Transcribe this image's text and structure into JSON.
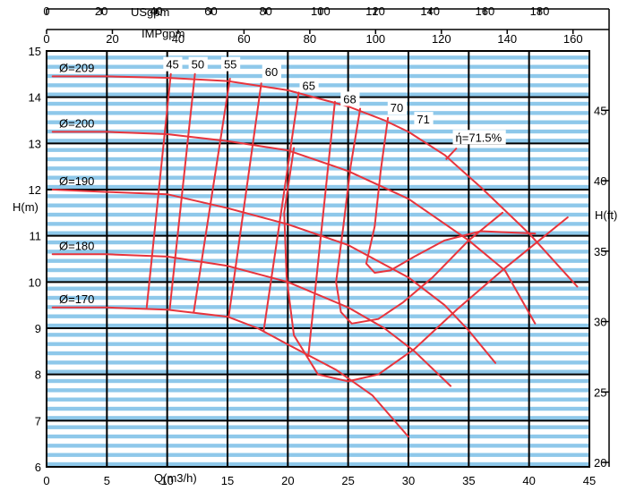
{
  "chart_data": {
    "type": "line",
    "colors": {
      "curve": "#e8343c",
      "band": "#8ec8ea",
      "grid": "#000000"
    },
    "axes": {
      "bottom": {
        "label": "Q(m3/h)",
        "range": [
          0,
          45
        ],
        "ticks": [
          0,
          5,
          10,
          15,
          20,
          25,
          30,
          35,
          40,
          45
        ]
      },
      "left": {
        "label": "H(m)",
        "range": [
          6,
          15
        ],
        "ticks": [
          6,
          7,
          8,
          9,
          10,
          11,
          12,
          13,
          14,
          15
        ]
      },
      "right": {
        "label": "H(ft)",
        "ticks": [
          20,
          25,
          30,
          35,
          40,
          45
        ]
      },
      "top1": {
        "label": "USgpm",
        "ticks": [
          0,
          20,
          40,
          60,
          80,
          100,
          120,
          140,
          160,
          180
        ]
      },
      "top2": {
        "label": "IMPgpm",
        "ticks": [
          0,
          20,
          40,
          60,
          80,
          100,
          120,
          140,
          160
        ]
      }
    },
    "head_curves": [
      {
        "name": "Ø=209",
        "points": [
          [
            0.5,
            14.45
          ],
          [
            5,
            14.45
          ],
          [
            10,
            14.42
          ],
          [
            15,
            14.35
          ],
          [
            20,
            14.15
          ],
          [
            25,
            13.8
          ],
          [
            28,
            13.5
          ],
          [
            30,
            13.25
          ],
          [
            33,
            12.75
          ],
          [
            36,
            12.05
          ],
          [
            40,
            11.05
          ],
          [
            44,
            9.9
          ]
        ]
      },
      {
        "name": "Ø=200",
        "points": [
          [
            0.5,
            13.25
          ],
          [
            5,
            13.25
          ],
          [
            10,
            13.2
          ],
          [
            15,
            13.05
          ],
          [
            20,
            12.85
          ],
          [
            25,
            12.4
          ],
          [
            30,
            11.8
          ],
          [
            35,
            10.9
          ],
          [
            38,
            10.25
          ],
          [
            40.5,
            9.1
          ]
        ]
      },
      {
        "name": "Ø=190",
        "points": [
          [
            0.5,
            12.0
          ],
          [
            5,
            11.95
          ],
          [
            10,
            11.9
          ],
          [
            15,
            11.6
          ],
          [
            20,
            11.25
          ],
          [
            25,
            10.8
          ],
          [
            30,
            10.1
          ],
          [
            33,
            9.5
          ],
          [
            35,
            8.95
          ],
          [
            37.2,
            8.25
          ]
        ]
      },
      {
        "name": "Ø=180",
        "points": [
          [
            0.5,
            10.6
          ],
          [
            5,
            10.6
          ],
          [
            10,
            10.55
          ],
          [
            15,
            10.35
          ],
          [
            20,
            10.0
          ],
          [
            25,
            9.45
          ],
          [
            28,
            9.0
          ],
          [
            30.5,
            8.5
          ],
          [
            33.5,
            7.75
          ]
        ]
      },
      {
        "name": "Ø=170",
        "points": [
          [
            0.5,
            9.45
          ],
          [
            5,
            9.45
          ],
          [
            10,
            9.4
          ],
          [
            15,
            9.25
          ],
          [
            17.5,
            9.0
          ],
          [
            20,
            8.65
          ],
          [
            24,
            8.1
          ],
          [
            27,
            7.55
          ],
          [
            30,
            6.65
          ]
        ]
      }
    ],
    "efficiency_labels": [
      "45",
      "50",
      "55",
      "60",
      "65",
      "68",
      "70",
      "71",
      "ή=71.5%"
    ],
    "efficiency_lines": [
      {
        "points": [
          [
            10.3,
            14.5
          ],
          [
            8.3,
            9.45
          ]
        ]
      },
      {
        "points": [
          [
            12.3,
            14.5
          ],
          [
            10.2,
            9.4
          ]
        ]
      },
      {
        "points": [
          [
            15.2,
            14.4
          ],
          [
            12.2,
            9.35
          ]
        ]
      },
      {
        "points": [
          [
            17.8,
            14.3
          ],
          [
            15.1,
            9.25
          ]
        ]
      },
      {
        "points": [
          [
            20.9,
            14.1
          ],
          [
            18.0,
            8.95
          ]
        ]
      },
      {
        "points": [
          [
            23.9,
            13.9
          ],
          [
            21.7,
            8.4
          ]
        ]
      }
    ],
    "efficiency_loops": [
      {
        "points": [
          [
            26.0,
            13.75
          ],
          [
            25.2,
            12.5
          ],
          [
            24.6,
            11.2
          ],
          [
            24.0,
            10.0
          ],
          [
            24.4,
            9.35
          ],
          [
            25.3,
            9.1
          ],
          [
            27.5,
            9.2
          ],
          [
            29.5,
            9.55
          ],
          [
            32,
            10.1
          ],
          [
            35,
            10.9
          ],
          [
            37.8,
            11.5
          ]
        ]
      },
      {
        "points": [
          [
            28.3,
            13.55
          ],
          [
            27.7,
            12.4
          ],
          [
            27.2,
            11.2
          ],
          [
            26.5,
            10.4
          ],
          [
            27.2,
            10.2
          ],
          [
            28.5,
            10.25
          ],
          [
            30.5,
            10.55
          ],
          [
            33,
            10.9
          ],
          [
            36,
            11.1
          ],
          [
            40.5,
            11.05
          ]
        ]
      },
      {
        "points": [
          [
            20.5,
            12.9
          ],
          [
            19.7,
            11.5
          ],
          [
            19.9,
            10.1
          ],
          [
            20.5,
            8.85
          ],
          [
            22.5,
            8.0
          ],
          [
            25,
            7.85
          ],
          [
            27.5,
            8.0
          ],
          [
            30.5,
            8.55
          ],
          [
            34,
            9.4
          ],
          [
            38,
            10.3
          ],
          [
            43.2,
            11.4
          ]
        ]
      }
    ]
  }
}
